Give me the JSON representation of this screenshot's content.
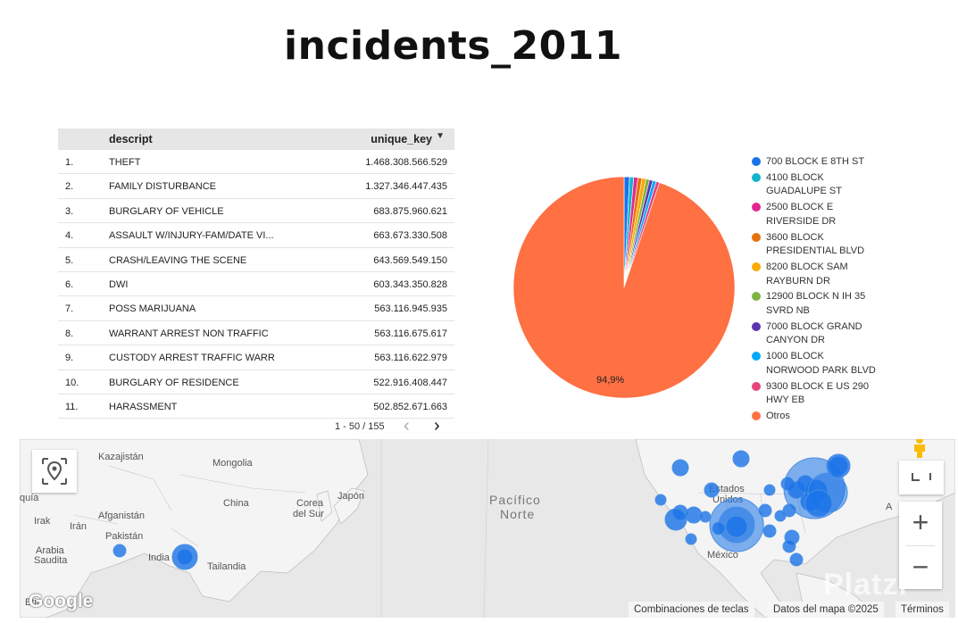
{
  "report": {
    "title": "incidents_2011"
  },
  "table": {
    "headers": {
      "descript": "descript",
      "unique_key": "unique_key",
      "sort_icon": "caret-down-icon"
    },
    "rows": [
      {
        "idx": "1.",
        "descript": "THEFT",
        "value": "1.468.308.566.529"
      },
      {
        "idx": "2.",
        "descript": "FAMILY DISTURBANCE",
        "value": "1.327.346.447.435"
      },
      {
        "idx": "3.",
        "descript": "BURGLARY OF VEHICLE",
        "value": "683.875.960.621"
      },
      {
        "idx": "4.",
        "descript": "ASSAULT W/INJURY-FAM/DATE VI...",
        "value": "663.673.330.508"
      },
      {
        "idx": "5.",
        "descript": "CRASH/LEAVING THE SCENE",
        "value": "643.569.549.150"
      },
      {
        "idx": "6.",
        "descript": "DWI",
        "value": "603.343.350.828"
      },
      {
        "idx": "7.",
        "descript": "POSS MARIJUANA",
        "value": "563.116.945.935"
      },
      {
        "idx": "8.",
        "descript": "WARRANT ARREST NON TRAFFIC",
        "value": "563.116.675.617"
      },
      {
        "idx": "9.",
        "descript": "CUSTODY ARREST TRAFFIC WARR",
        "value": "563.116.622.979"
      },
      {
        "idx": "10.",
        "descript": "BURGLARY OF RESIDENCE",
        "value": "522.916.408.447"
      },
      {
        "idx": "11.",
        "descript": "HARASSMENT",
        "value": "502.852.671.663"
      }
    ],
    "pagination": {
      "range": "1 - 50 / 155",
      "prev_icon": "chevron-left-icon",
      "next_icon": "chevron-right-icon"
    }
  },
  "chart_data": {
    "type": "pie",
    "slices": [
      {
        "label": "700 BLOCK E 8TH ST",
        "value": 0.8,
        "color": "#1a73e8"
      },
      {
        "label": "4100 BLOCK GUADALUPE ST",
        "value": 0.6,
        "color": "#12b5cb"
      },
      {
        "label": "2500 BLOCK E RIVERSIDE DR",
        "value": 0.6,
        "color": "#e52592"
      },
      {
        "label": "3600 BLOCK PRESIDENTIAL BLVD",
        "value": 0.6,
        "color": "#e8710a"
      },
      {
        "label": "8200 BLOCK SAM RAYBURN DR",
        "value": 0.6,
        "color": "#f9ab00"
      },
      {
        "label": "12900 BLOCK N IH 35 SVRD NB",
        "value": 0.5,
        "color": "#7cb342"
      },
      {
        "label": "7000 BLOCK GRAND CANYON DR",
        "value": 0.5,
        "color": "#5e35b1"
      },
      {
        "label": "1000 BLOCK NORWOOD PARK BLVD",
        "value": 0.5,
        "color": "#03a9f4"
      },
      {
        "label": "9300 BLOCK E US 290 HWY EB",
        "value": 0.5,
        "color": "#e8437e"
      },
      {
        "label": "Otros",
        "value": 94.9,
        "color": "#ff7043"
      }
    ],
    "data_labels": [
      {
        "slice": "Otros",
        "text": "94,9%"
      }
    ],
    "legend_position": "right",
    "legend": [
      {
        "line1": "700 BLOCK E 8TH ST",
        "line2": ""
      },
      {
        "line1": "4100 BLOCK",
        "line2": "GUADALUPE ST"
      },
      {
        "line1": "2500 BLOCK E",
        "line2": "RIVERSIDE DR"
      },
      {
        "line1": "3600 BLOCK",
        "line2": "PRESIDENTIAL BLVD"
      },
      {
        "line1": "8200 BLOCK SAM",
        "line2": "RAYBURN DR"
      },
      {
        "line1": "12900 BLOCK N IH 35",
        "line2": "SVRD NB"
      },
      {
        "line1": "7000 BLOCK GRAND",
        "line2": "CANYON DR"
      },
      {
        "line1": "1000 BLOCK",
        "line2": "NORWOOD PARK BLVD"
      },
      {
        "line1": "9300 BLOCK E US 290",
        "line2": "HWY EB"
      },
      {
        "line1": "Otros",
        "line2": ""
      }
    ]
  },
  "map": {
    "labels": {
      "kazajistan": "Kazajistán",
      "mongolia": "Mongolia",
      "china": "China",
      "corea": "Corea",
      "corea2": "del Sur",
      "japon": "Japón",
      "irak": "Irak",
      "iran": "Irán",
      "afganistan": "Afganistán",
      "pakistan": "Pakistán",
      "arabia": "Arabia",
      "saudita": "Saudita",
      "india": "India",
      "tailandia": "Tailandia",
      "pacifico": "Pacífico",
      "norte": "Norte",
      "estados": "Estados",
      "unidos": "Unidos",
      "mexico": "México",
      "quia": "quía",
      "etio": "Etio",
      "a": "A"
    },
    "point_color": "#1a73e8",
    "controls": {
      "location_icon": "location-pin-icon",
      "pegman_icon": "pegman-icon",
      "fullscreen_icon": "fullscreen-icon",
      "zoom_in": "+",
      "zoom_out": "−"
    },
    "attribution": {
      "shortcuts": "Combinaciones de teclas",
      "map_data": "Datos del mapa ©2025",
      "terms": "Términos"
    },
    "logo": "Google",
    "watermark": "Platzi"
  }
}
